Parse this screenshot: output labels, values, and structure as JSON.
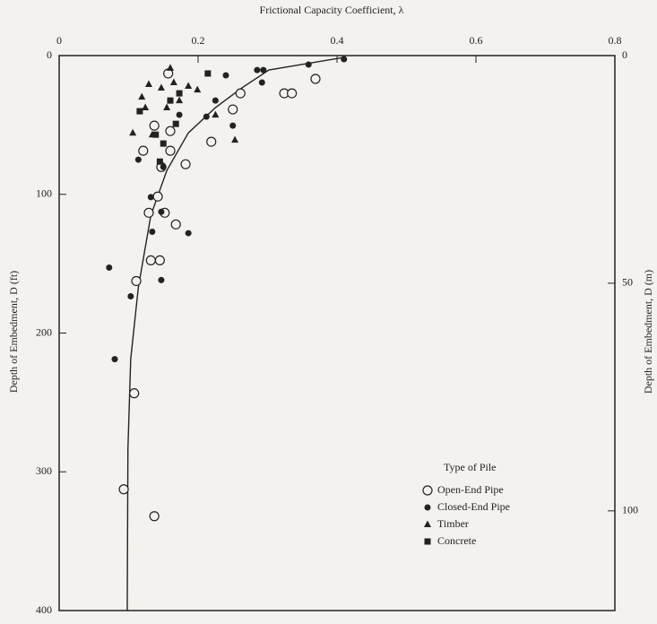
{
  "chart_data": {
    "type": "scatter",
    "title": "Frictional Capacity Coefficient, λ",
    "y_label": "Depth of Embedment, D (ft)",
    "y2_label": "Depth of Embedment, D (m)",
    "legend_title": "Type of Pile",
    "xlim": [
      0,
      0.8
    ],
    "xticks": [
      0,
      0.2,
      0.4,
      0.6,
      0.8
    ],
    "ylim": [
      0,
      400
    ],
    "yticks": [
      0,
      100,
      200,
      300,
      400
    ],
    "y_inverted": true,
    "y2lim": [
      0,
      121.9
    ],
    "y2ticks": [
      0,
      50,
      100
    ],
    "color": "#222222",
    "series": [
      {
        "name": "Open-End Pipe",
        "marker": "open-circle",
        "x": [
          0.157,
          0.369,
          0.324,
          0.335,
          0.261,
          0.25,
          0.219,
          0.137,
          0.16,
          0.121,
          0.16,
          0.182,
          0.147,
          0.142,
          0.129,
          0.152,
          0.168,
          0.132,
          0.145,
          0.111,
          0.108,
          0.093,
          0.137
        ],
        "values": [
          12.9,
          16.8,
          27.2,
          27.2,
          27.2,
          38.8,
          62.1,
          50.5,
          54.4,
          68.6,
          68.6,
          78.3,
          80.3,
          101.6,
          113.3,
          113.3,
          121.7,
          147.6,
          147.6,
          162.5,
          243.4,
          312.6,
          332
        ]
      },
      {
        "name": "Closed-End Pipe",
        "marker": "circle",
        "x": [
          0.285,
          0.294,
          0.359,
          0.41,
          0.24,
          0.292,
          0.225,
          0.212,
          0.25,
          0.173,
          0.114,
          0.15,
          0.132,
          0.134,
          0.147,
          0.186,
          0.072,
          0.147,
          0.103,
          0.08
        ],
        "values": [
          10.4,
          10.4,
          6.5,
          2.6,
          14.2,
          19.4,
          32.4,
          44,
          50.5,
          42.7,
          75,
          80.3,
          102,
          127,
          112.6,
          128,
          152.8,
          161.8,
          173.5,
          218.8
        ]
      },
      {
        "name": "Timber",
        "marker": "triangle",
        "x": [
          0.16,
          0.129,
          0.147,
          0.165,
          0.186,
          0.124,
          0.106,
          0.134,
          0.199,
          0.173,
          0.253,
          0.225,
          0.119,
          0.155
        ],
        "values": [
          9,
          20.7,
          23.3,
          19.4,
          22,
          37.5,
          55.7,
          57,
          24.6,
          32.4,
          60.8,
          42.7,
          29.8,
          37.5
        ]
      },
      {
        "name": "Concrete",
        "marker": "square",
        "x": [
          0.214,
          0.173,
          0.16,
          0.168,
          0.139,
          0.116,
          0.15,
          0.145
        ],
        "values": [
          12.9,
          27.2,
          32.4,
          49.2,
          57,
          40.1,
          63.4,
          76.4
        ]
      }
    ],
    "curve": {
      "x": [
        0.41,
        0.302,
        0.263,
        0.225,
        0.186,
        0.155,
        0.132,
        0.114,
        0.103,
        0.099,
        0.098
      ],
      "values": [
        1.3,
        10.4,
        23.3,
        37.5,
        55.7,
        82.8,
        115.2,
        167,
        218.8,
        283.5,
        400
      ]
    }
  }
}
